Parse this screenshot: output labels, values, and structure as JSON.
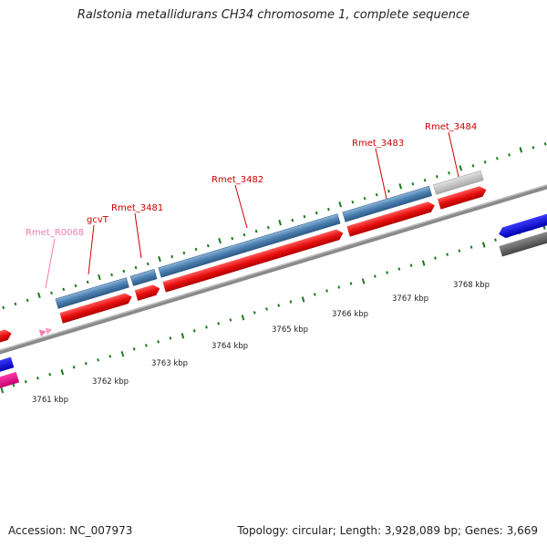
{
  "title": "Ralstonia metallidurans CH34 chromosome 1, complete sequence",
  "accession": "Accession: NC_007973",
  "summary": "Topology: circular; Length: 3,928,089 bp; Genes: 3,669",
  "colors": {
    "cds": "#e81010",
    "gene": "#4a7fb0",
    "rrna": "#f07ab0",
    "pseudo": "#b8b8b8",
    "backbone": "#8a8a8a",
    "tick": "#1a7a1a",
    "label_gene": "#cc0000",
    "label_rna": "#f07ab0"
  },
  "scale_labels": [
    {
      "text": "3761 kbp"
    },
    {
      "text": "3762 kbp"
    },
    {
      "text": "3763 kbp"
    },
    {
      "text": "3764 kbp"
    },
    {
      "text": "3765 kbp"
    },
    {
      "text": "3766 kbp"
    },
    {
      "text": "3767 kbp"
    },
    {
      "text": "3768 kbp"
    }
  ],
  "genes": [
    {
      "name": "Rmet_R0068",
      "type": "rRNA"
    },
    {
      "name": "gcvT",
      "type": "gene"
    },
    {
      "name": "Rmet_3481",
      "type": "gene"
    },
    {
      "name": "Rmet_3482",
      "type": "gene"
    },
    {
      "name": "Rmet_3483",
      "type": "gene"
    },
    {
      "name": "Rmet_3484",
      "type": "pseudo"
    }
  ]
}
